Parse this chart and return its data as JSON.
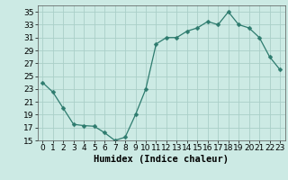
{
  "x": [
    0,
    1,
    2,
    3,
    4,
    5,
    6,
    7,
    8,
    9,
    10,
    11,
    12,
    13,
    14,
    15,
    16,
    17,
    18,
    19,
    20,
    21,
    22,
    23
  ],
  "y": [
    24.0,
    22.5,
    20.0,
    17.5,
    17.3,
    17.2,
    16.2,
    15.0,
    15.5,
    19.0,
    23.0,
    30.0,
    31.0,
    31.0,
    32.0,
    32.5,
    33.5,
    33.0,
    35.0,
    33.0,
    32.5,
    31.0,
    28.0,
    26.0
  ],
  "line_color": "#2d7b6e",
  "marker": "D",
  "marker_size": 2.5,
  "bg_color": "#cceae4",
  "grid_color": "#aacfc8",
  "xlabel": "Humidex (Indice chaleur)",
  "ylim": [
    15,
    36
  ],
  "xlim": [
    -0.5,
    23.5
  ],
  "yticks": [
    15,
    17,
    19,
    21,
    23,
    25,
    27,
    29,
    31,
    33,
    35
  ],
  "xticks": [
    0,
    1,
    2,
    3,
    4,
    5,
    6,
    7,
    8,
    9,
    10,
    11,
    12,
    13,
    14,
    15,
    16,
    17,
    18,
    19,
    20,
    21,
    22,
    23
  ],
  "tick_fontsize": 6.5,
  "xlabel_fontsize": 7.5
}
